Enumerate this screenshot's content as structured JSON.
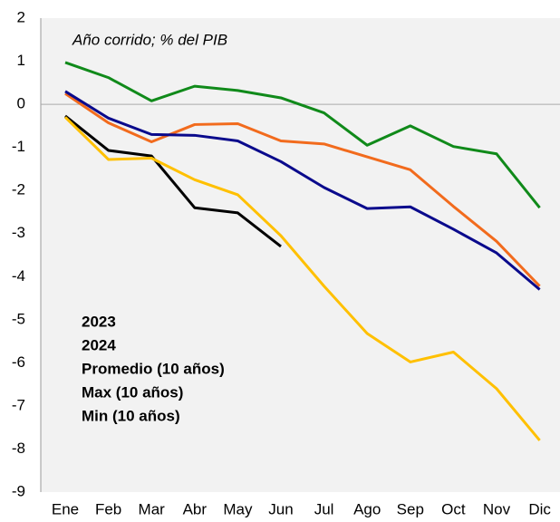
{
  "chart_data": {
    "type": "line",
    "annotation": "Año corrido; % del PIB",
    "categories": [
      "Ene",
      "Feb",
      "Mar",
      "Abr",
      "May",
      "Jun",
      "Jul",
      "Ago",
      "Sep",
      "Oct",
      "Nov",
      "Dic"
    ],
    "series": [
      {
        "name": "2023",
        "color": "#f26b1d",
        "values": [
          0.25,
          -0.43,
          -0.87,
          -0.47,
          -0.45,
          -0.85,
          -0.92,
          -1.22,
          -1.52,
          -2.37,
          -3.18,
          -4.22
        ]
      },
      {
        "name": "2024",
        "color": "#000000",
        "values": [
          -0.27,
          -1.07,
          -1.2,
          -2.4,
          -2.52,
          -3.3,
          null,
          null,
          null,
          null,
          null,
          null
        ]
      },
      {
        "name": "Promedio (10 años)",
        "color": "#0a0a8c",
        "values": [
          0.3,
          -0.32,
          -0.7,
          -0.72,
          -0.85,
          -1.33,
          -1.93,
          -2.42,
          -2.38,
          -2.9,
          -3.45,
          -4.3
        ]
      },
      {
        "name": "Max (10 años)",
        "color": "#ffc000",
        "values": [
          -0.3,
          -1.28,
          -1.25,
          -1.75,
          -2.1,
          -3.05,
          -4.22,
          -5.32,
          -5.98,
          -5.75,
          -6.6,
          -7.8
        ]
      },
      {
        "name": "Min (10 años)",
        "color": "#108a1a",
        "values": [
          0.97,
          0.62,
          0.08,
          0.42,
          0.32,
          0.15,
          -0.2,
          -0.95,
          -0.5,
          -0.98,
          -1.15,
          -2.4
        ]
      }
    ],
    "ylim": [
      -9,
      2
    ],
    "yticks": [
      -9,
      -8,
      -7,
      -6,
      -5,
      -4,
      -3,
      -2,
      -1,
      0,
      1,
      2
    ],
    "legend": "lower-left"
  }
}
